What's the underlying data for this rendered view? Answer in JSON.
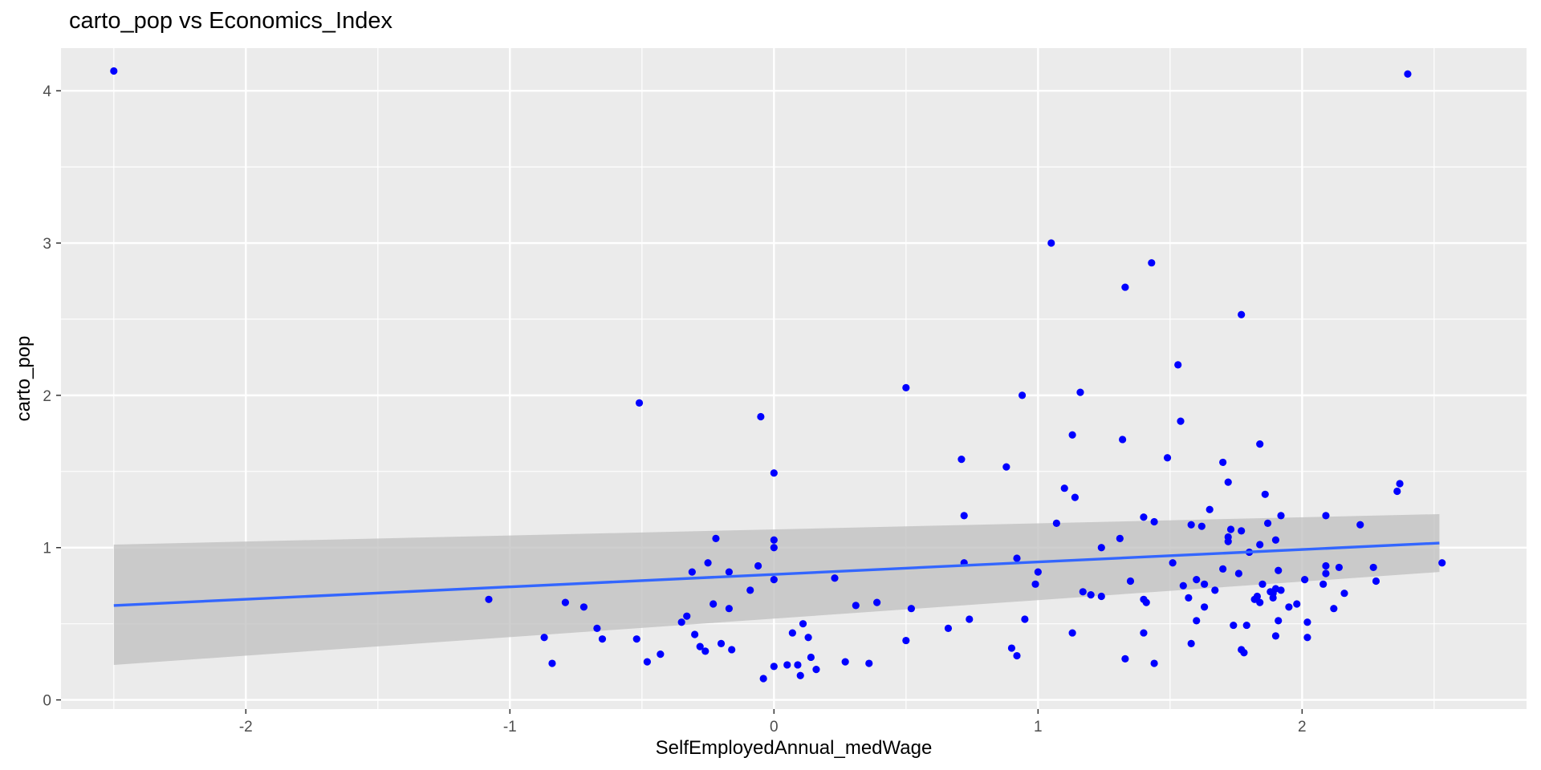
{
  "chart_data": {
    "type": "scatter",
    "title": "carto_pop vs Economics_Index",
    "xlabel": "SelfEmployedAnnual_medWage",
    "ylabel": "carto_pop",
    "xlim": [
      -2.7,
      2.85
    ],
    "ylim": [
      -0.06,
      4.28
    ],
    "x_ticks": [
      -2,
      -1,
      0,
      1,
      2
    ],
    "y_ticks": [
      0,
      1,
      2,
      3,
      4
    ],
    "grid": true,
    "background": "#ebebeb",
    "point_color": "#0000ff",
    "trend_color": "#3366ff",
    "band_color": "#bfbfbf",
    "trend": {
      "x": [
        -2.5,
        2.52
      ],
      "y": [
        0.62,
        1.03
      ],
      "lower": [
        0.23,
        0.84
      ],
      "upper": [
        1.02,
        1.22
      ]
    },
    "points": [
      [
        -2.5,
        4.13
      ],
      [
        2.4,
        4.11
      ],
      [
        1.05,
        3.0
      ],
      [
        1.43,
        2.87
      ],
      [
        1.33,
        2.71
      ],
      [
        1.77,
        2.53
      ],
      [
        1.53,
        2.2
      ],
      [
        0.5,
        2.05
      ],
      [
        1.16,
        2.02
      ],
      [
        0.94,
        2.0
      ],
      [
        -0.51,
        1.95
      ],
      [
        -0.05,
        1.86
      ],
      [
        1.54,
        1.83
      ],
      [
        1.13,
        1.74
      ],
      [
        1.32,
        1.71
      ],
      [
        1.84,
        1.68
      ],
      [
        1.49,
        1.59
      ],
      [
        0.71,
        1.58
      ],
      [
        1.7,
        1.56
      ],
      [
        0.88,
        1.53
      ],
      [
        0.0,
        1.49
      ],
      [
        1.72,
        1.43
      ],
      [
        2.37,
        1.42
      ],
      [
        1.1,
        1.39
      ],
      [
        2.36,
        1.37
      ],
      [
        1.86,
        1.35
      ],
      [
        1.14,
        1.33
      ],
      [
        1.65,
        1.25
      ],
      [
        0.72,
        1.21
      ],
      [
        1.92,
        1.21
      ],
      [
        2.09,
        1.21
      ],
      [
        1.4,
        1.2
      ],
      [
        1.44,
        1.17
      ],
      [
        1.07,
        1.16
      ],
      [
        1.87,
        1.16
      ],
      [
        1.58,
        1.15
      ],
      [
        2.22,
        1.15
      ],
      [
        1.62,
        1.14
      ],
      [
        1.73,
        1.12
      ],
      [
        1.77,
        1.11
      ],
      [
        1.72,
        1.07
      ],
      [
        -0.22,
        1.06
      ],
      [
        1.31,
        1.06
      ],
      [
        0.0,
        1.05
      ],
      [
        1.9,
        1.05
      ],
      [
        1.72,
        1.04
      ],
      [
        1.84,
        1.02
      ],
      [
        0.0,
        1.0
      ],
      [
        1.24,
        1.0
      ],
      [
        1.8,
        0.97
      ],
      [
        0.92,
        0.93
      ],
      [
        -0.25,
        0.9
      ],
      [
        0.72,
        0.9
      ],
      [
        1.51,
        0.9
      ],
      [
        2.53,
        0.9
      ],
      [
        -0.06,
        0.88
      ],
      [
        2.09,
        0.88
      ],
      [
        2.14,
        0.87
      ],
      [
        2.27,
        0.87
      ],
      [
        1.7,
        0.86
      ],
      [
        1.91,
        0.85
      ],
      [
        -0.17,
        0.84
      ],
      [
        -0.31,
        0.84
      ],
      [
        1.0,
        0.84
      ],
      [
        1.76,
        0.83
      ],
      [
        2.09,
        0.83
      ],
      [
        0.23,
        0.8
      ],
      [
        0.0,
        0.79
      ],
      [
        1.35,
        0.78
      ],
      [
        1.6,
        0.79
      ],
      [
        2.01,
        0.79
      ],
      [
        2.28,
        0.78
      ],
      [
        0.99,
        0.76
      ],
      [
        1.63,
        0.76
      ],
      [
        1.85,
        0.76
      ],
      [
        2.08,
        0.76
      ],
      [
        1.55,
        0.75
      ],
      [
        1.9,
        0.73
      ],
      [
        1.92,
        0.72
      ],
      [
        1.88,
        0.71
      ],
      [
        1.67,
        0.72
      ],
      [
        1.17,
        0.71
      ],
      [
        -0.09,
        0.72
      ],
      [
        1.89,
        0.7
      ],
      [
        2.16,
        0.7
      ],
      [
        1.2,
        0.69
      ],
      [
        1.83,
        0.68
      ],
      [
        1.24,
        0.68
      ],
      [
        1.89,
        0.67
      ],
      [
        1.57,
        0.67
      ],
      [
        1.4,
        0.66
      ],
      [
        -1.08,
        0.66
      ],
      [
        1.82,
        0.66
      ],
      [
        1.41,
        0.64
      ],
      [
        -0.79,
        0.64
      ],
      [
        0.39,
        0.64
      ],
      [
        1.84,
        0.64
      ],
      [
        1.98,
        0.63
      ],
      [
        0.31,
        0.62
      ],
      [
        -0.72,
        0.61
      ],
      [
        -0.23,
        0.63
      ],
      [
        1.63,
        0.61
      ],
      [
        1.95,
        0.61
      ],
      [
        -0.17,
        0.6
      ],
      [
        0.52,
        0.6
      ],
      [
        2.12,
        0.6
      ],
      [
        -0.33,
        0.55
      ],
      [
        0.74,
        0.53
      ],
      [
        0.95,
        0.53
      ],
      [
        1.6,
        0.52
      ],
      [
        1.91,
        0.52
      ],
      [
        -0.35,
        0.51
      ],
      [
        2.02,
        0.51
      ],
      [
        0.11,
        0.5
      ],
      [
        1.74,
        0.49
      ],
      [
        1.79,
        0.49
      ],
      [
        0.66,
        0.47
      ],
      [
        -0.67,
        0.47
      ],
      [
        1.13,
        0.44
      ],
      [
        1.4,
        0.44
      ],
      [
        0.07,
        0.44
      ],
      [
        -0.3,
        0.43
      ],
      [
        1.9,
        0.42
      ],
      [
        2.02,
        0.41
      ],
      [
        -0.87,
        0.41
      ],
      [
        0.13,
        0.41
      ],
      [
        -0.52,
        0.4
      ],
      [
        -0.65,
        0.4
      ],
      [
        0.5,
        0.39
      ],
      [
        -0.2,
        0.37
      ],
      [
        1.58,
        0.37
      ],
      [
        -0.28,
        0.35
      ],
      [
        0.9,
        0.34
      ],
      [
        -0.16,
        0.33
      ],
      [
        -0.26,
        0.32
      ],
      [
        1.77,
        0.33
      ],
      [
        1.78,
        0.31
      ],
      [
        0.92,
        0.29
      ],
      [
        -0.43,
        0.3
      ],
      [
        0.14,
        0.28
      ],
      [
        1.33,
        0.27
      ],
      [
        -0.84,
        0.24
      ],
      [
        -0.48,
        0.25
      ],
      [
        0.27,
        0.25
      ],
      [
        1.44,
        0.24
      ],
      [
        0.36,
        0.24
      ],
      [
        0.0,
        0.22
      ],
      [
        0.05,
        0.23
      ],
      [
        0.09,
        0.23
      ],
      [
        0.16,
        0.2
      ],
      [
        0.1,
        0.16
      ],
      [
        -0.04,
        0.14
      ]
    ]
  }
}
